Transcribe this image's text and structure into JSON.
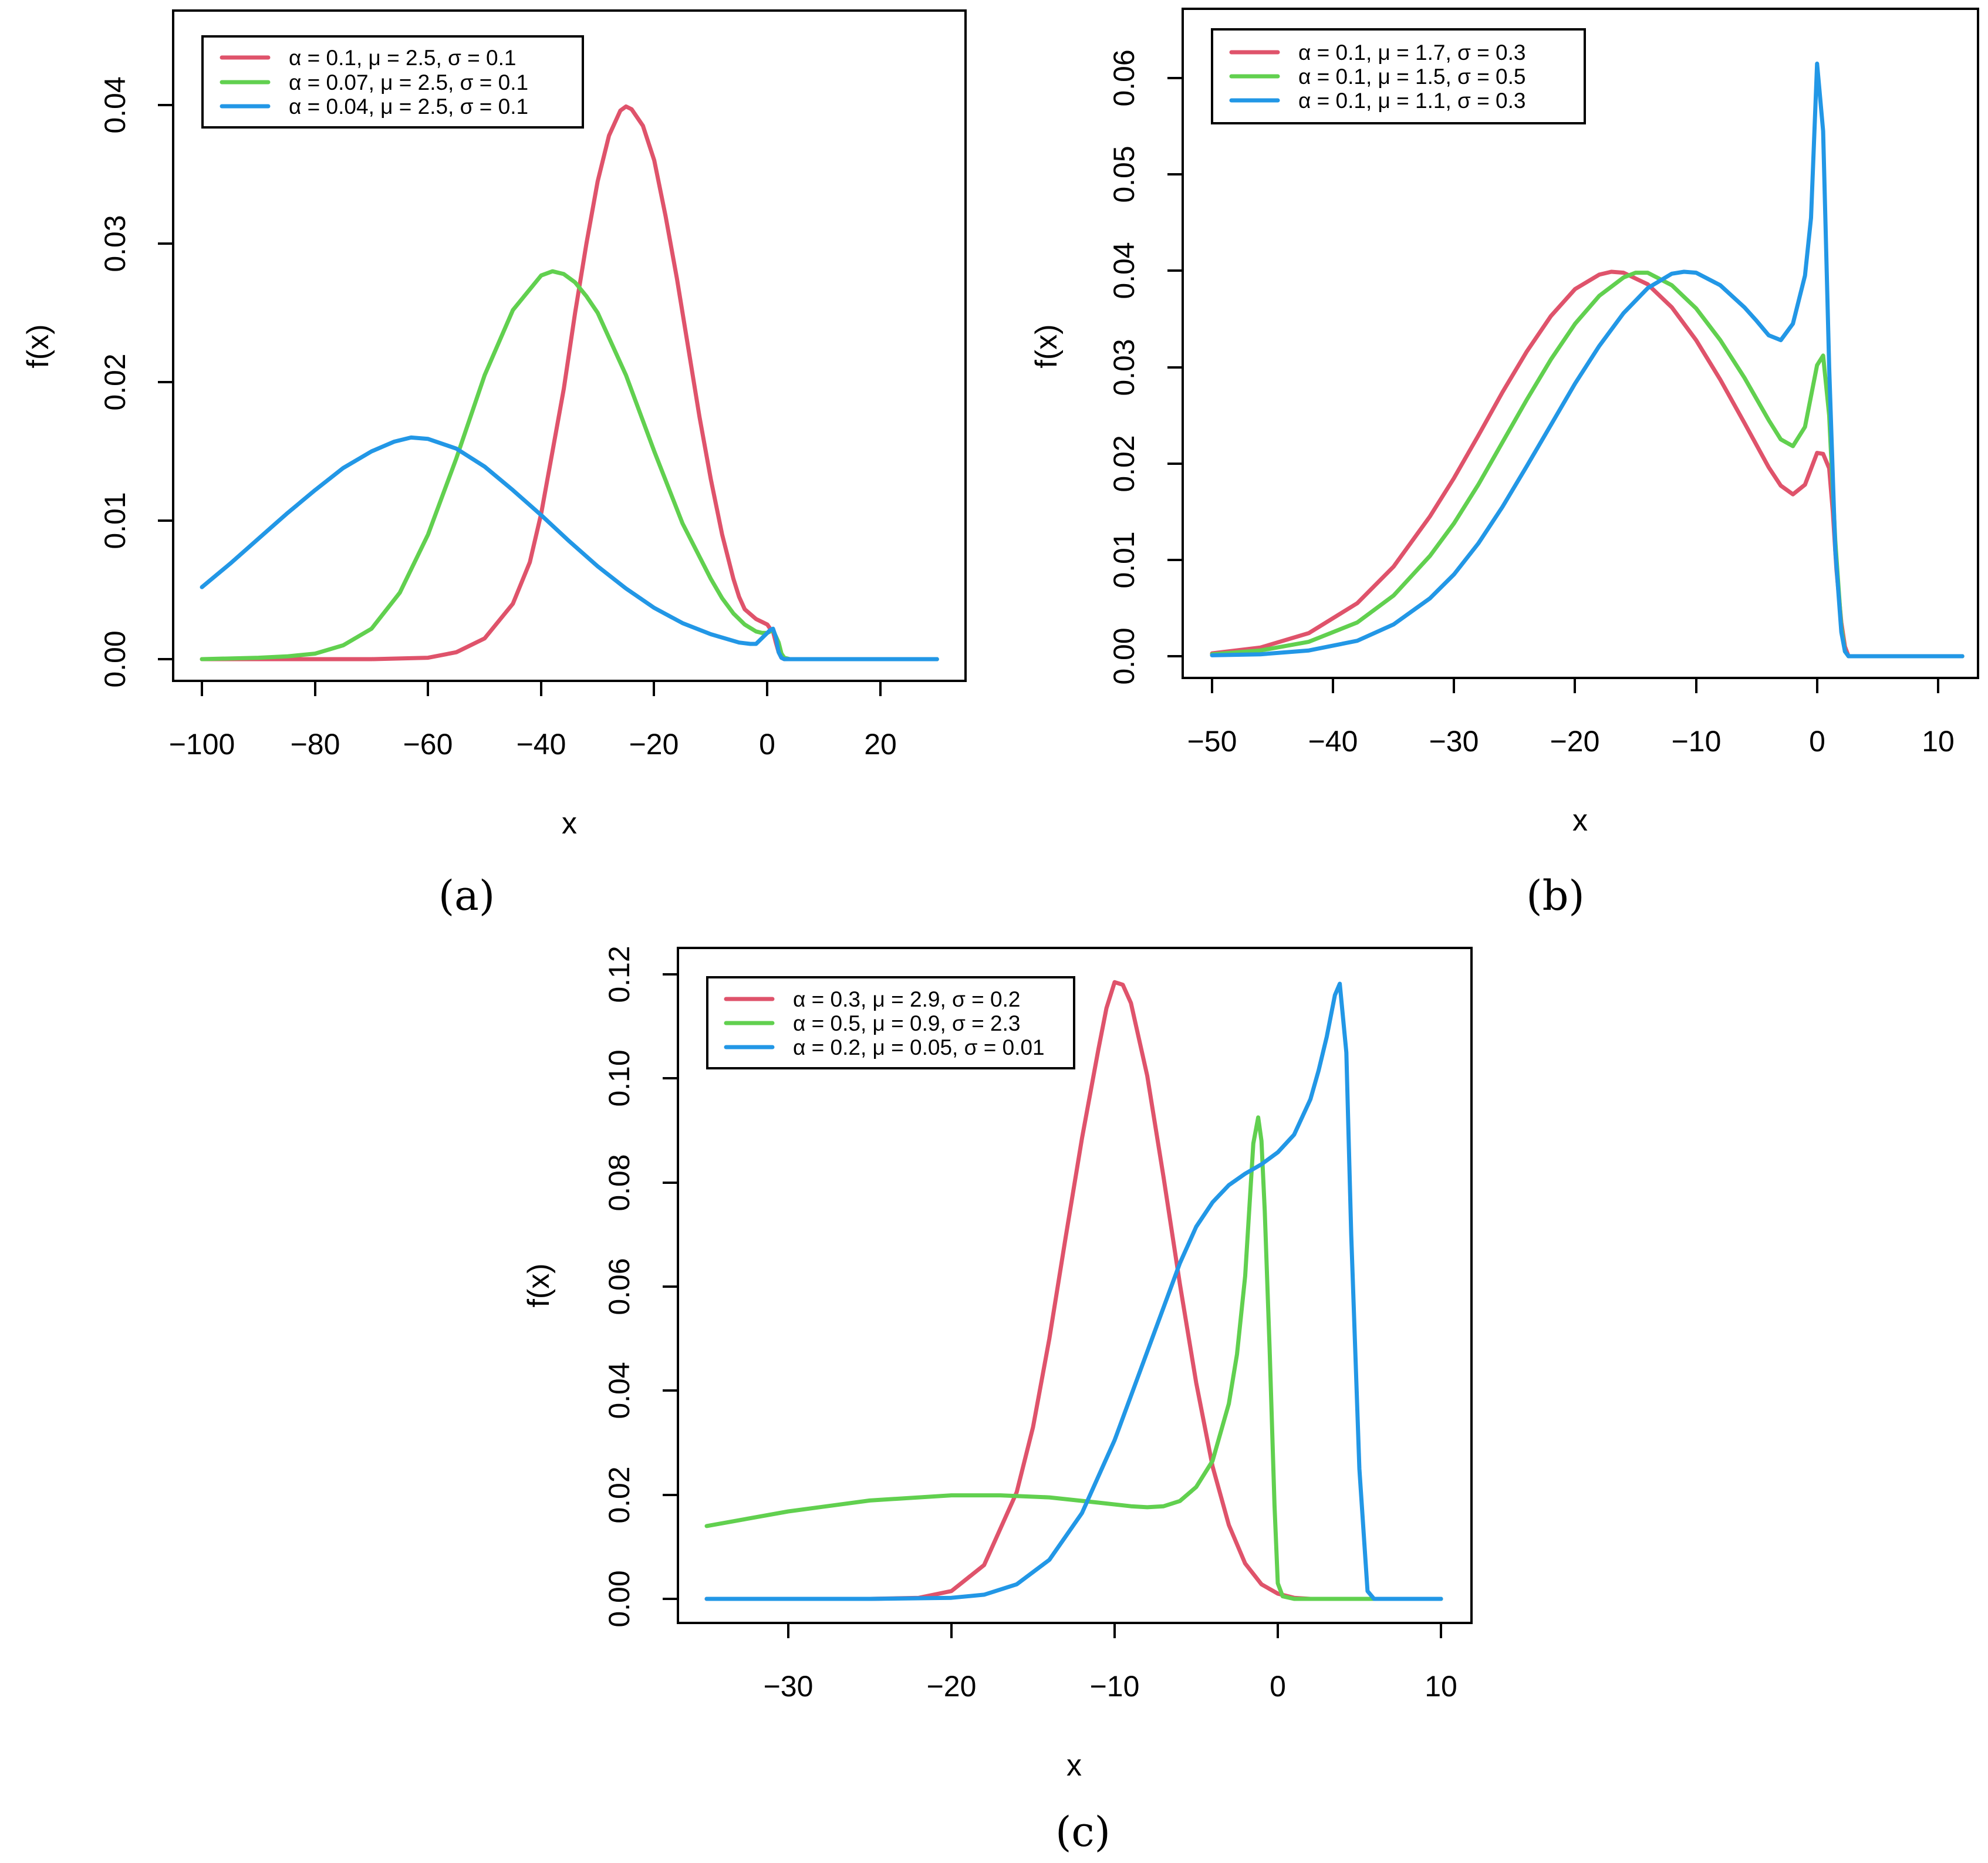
{
  "chart_data": [
    {
      "id": "a",
      "type": "line",
      "panel_label": "(a)",
      "title": "",
      "xlabel": "x",
      "ylabel": "f(x)",
      "xlim": [
        -100,
        30
      ],
      "ylim": [
        0,
        0.045
      ],
      "xticks": [
        -100,
        -80,
        -60,
        -40,
        -20,
        0,
        20
      ],
      "xtick_labels": [
        "−100",
        "−80",
        "−60",
        "−40",
        "−20",
        "0",
        "20"
      ],
      "yticks": [
        0,
        0.01,
        0.02,
        0.03,
        0.04
      ],
      "ytick_labels": [
        "0.00",
        "0.01",
        "0.02",
        "0.03",
        "0.04"
      ],
      "legend_position": "top-left",
      "series": [
        {
          "name": "α = 0.1, μ = 2.5, σ = 0.1",
          "color": "#DF536B",
          "x": [
            -100,
            -80,
            -70,
            -60,
            -55,
            -50,
            -45,
            -42,
            -40,
            -38,
            -36,
            -34,
            -32,
            -30,
            -28,
            -26,
            -25,
            -24,
            -22,
            -20,
            -18,
            -16,
            -14,
            -12,
            -10,
            -8,
            -6,
            -5,
            -4,
            -2,
            -1,
            0,
            0.5,
            1,
            1.5,
            2,
            2.5,
            3,
            4,
            10,
            20,
            30
          ],
          "y": [
            0,
            0,
            0,
            0.0001,
            0.0005,
            0.0015,
            0.004,
            0.007,
            0.0105,
            0.015,
            0.0195,
            0.025,
            0.03,
            0.0345,
            0.0378,
            0.0396,
            0.0399,
            0.0397,
            0.0385,
            0.036,
            0.032,
            0.0275,
            0.0225,
            0.0175,
            0.013,
            0.009,
            0.0058,
            0.0045,
            0.0036,
            0.0029,
            0.0027,
            0.0025,
            0.0022,
            0.002,
            0.0012,
            0.0005,
            0.0001,
            0,
            0,
            0,
            0,
            0
          ]
        },
        {
          "name": "α = 0.07, μ = 2.5, σ = 0.1",
          "color": "#61D04F",
          "x": [
            -100,
            -90,
            -85,
            -80,
            -75,
            -70,
            -65,
            -60,
            -55,
            -50,
            -45,
            -40,
            -38,
            -36,
            -34,
            -32,
            -30,
            -25,
            -20,
            -15,
            -10,
            -8,
            -6,
            -4,
            -2,
            -1,
            0,
            1,
            2,
            2.5,
            3,
            4,
            10,
            20,
            30
          ],
          "y": [
            0,
            0.0001,
            0.0002,
            0.0004,
            0.001,
            0.0022,
            0.0048,
            0.009,
            0.0145,
            0.0205,
            0.0252,
            0.0277,
            0.028,
            0.0278,
            0.0272,
            0.0262,
            0.025,
            0.0205,
            0.015,
            0.0098,
            0.0058,
            0.0044,
            0.0033,
            0.0025,
            0.002,
            0.0019,
            0.0019,
            0.0021,
            0.0012,
            0.0004,
            0.0001,
            0,
            0,
            0,
            0
          ]
        },
        {
          "name": "α = 0.04, μ = 2.5, σ = 0.1",
          "color": "#2297E6",
          "x": [
            -100,
            -95,
            -90,
            -85,
            -80,
            -75,
            -70,
            -66,
            -63,
            -60,
            -55,
            -50,
            -45,
            -40,
            -35,
            -30,
            -25,
            -20,
            -15,
            -10,
            -5,
            -3,
            -2,
            -1,
            0,
            0.5,
            1,
            1.5,
            2,
            2.5,
            3,
            4,
            10,
            20,
            30
          ],
          "y": [
            0.0052,
            0.0069,
            0.0087,
            0.0105,
            0.0122,
            0.0138,
            0.015,
            0.0157,
            0.016,
            0.0159,
            0.0152,
            0.0139,
            0.0122,
            0.0104,
            0.0085,
            0.0067,
            0.0051,
            0.0037,
            0.0026,
            0.0018,
            0.0012,
            0.0011,
            0.0011,
            0.0015,
            0.0019,
            0.0021,
            0.0022,
            0.0016,
            0.0005,
            0.0001,
            0,
            0,
            0,
            0,
            0
          ]
        }
      ]
    },
    {
      "id": "b",
      "type": "line",
      "panel_label": "(b)",
      "title": "",
      "xlabel": "x",
      "ylabel": "f(x)",
      "xlim": [
        -50,
        12
      ],
      "ylim": [
        0,
        0.065
      ],
      "xticks": [
        -50,
        -40,
        -30,
        -20,
        -10,
        0,
        10
      ],
      "xtick_labels": [
        "−50",
        "−40",
        "−30",
        "−20",
        "−10",
        "0",
        "10"
      ],
      "yticks": [
        0,
        0.01,
        0.02,
        0.03,
        0.04,
        0.05,
        0.06
      ],
      "ytick_labels": [
        "0.00",
        "0.01",
        "0.02",
        "0.03",
        "0.04",
        "0.05",
        "0.06"
      ],
      "legend_position": "top-left",
      "series": [
        {
          "name": "α = 0.1, μ = 1.7, σ = 0.3",
          "color": "#DF536B",
          "x": [
            -50,
            -46,
            -42,
            -38,
            -35,
            -32,
            -30,
            -28,
            -26,
            -24,
            -22,
            -20,
            -18,
            -17,
            -16,
            -14,
            -12,
            -10,
            -8,
            -6,
            -4,
            -3,
            -2,
            -1,
            0,
            0.5,
            1,
            1.3,
            1.6,
            2,
            2.3,
            2.6,
            5,
            12
          ],
          "y": [
            0.0003,
            0.0009,
            0.0024,
            0.0055,
            0.0093,
            0.0145,
            0.0185,
            0.0229,
            0.0274,
            0.0316,
            0.0353,
            0.0381,
            0.0396,
            0.0399,
            0.0398,
            0.0386,
            0.0362,
            0.0328,
            0.0287,
            0.0242,
            0.0196,
            0.0177,
            0.0168,
            0.0178,
            0.0211,
            0.021,
            0.0195,
            0.015,
            0.009,
            0.0035,
            0.001,
            0,
            0,
            0
          ]
        },
        {
          "name": "α = 0.1, μ = 1.5, σ = 0.5",
          "color": "#61D04F",
          "x": [
            -50,
            -46,
            -42,
            -38,
            -35,
            -32,
            -30,
            -28,
            -26,
            -24,
            -22,
            -20,
            -18,
            -16,
            -15,
            -14,
            -12,
            -10,
            -8,
            -6,
            -4,
            -3,
            -2,
            -1,
            0,
            0.5,
            1,
            1.5,
            2,
            2.3,
            2.6,
            5,
            12
          ],
          "y": [
            0.0002,
            0.0006,
            0.0015,
            0.0035,
            0.0063,
            0.0104,
            0.0138,
            0.0178,
            0.0222,
            0.0266,
            0.0308,
            0.0345,
            0.0374,
            0.0393,
            0.0398,
            0.0398,
            0.0385,
            0.0361,
            0.0328,
            0.0289,
            0.0245,
            0.0225,
            0.0218,
            0.0238,
            0.0302,
            0.0312,
            0.025,
            0.012,
            0.003,
            0.0005,
            0,
            0,
            0
          ]
        },
        {
          "name": "α = 0.1, μ = 1.1, σ = 0.3",
          "color": "#2297E6",
          "x": [
            -50,
            -46,
            -42,
            -38,
            -35,
            -32,
            -30,
            -28,
            -26,
            -24,
            -22,
            -20,
            -18,
            -16,
            -14,
            -12,
            -11,
            -10,
            -8,
            -6,
            -5,
            -4,
            -3,
            -2,
            -1,
            -0.5,
            0,
            0.5,
            1,
            1.5,
            2,
            2.3,
            2.6,
            5,
            12
          ],
          "y": [
            0.0001,
            0.0002,
            0.0006,
            0.0016,
            0.0033,
            0.006,
            0.0085,
            0.0117,
            0.0155,
            0.0197,
            0.024,
            0.0283,
            0.0322,
            0.0356,
            0.0382,
            0.0397,
            0.0399,
            0.0398,
            0.0385,
            0.0362,
            0.0348,
            0.0333,
            0.0328,
            0.0345,
            0.0395,
            0.0455,
            0.0615,
            0.0545,
            0.03,
            0.011,
            0.0025,
            0.0005,
            0,
            0,
            0
          ]
        }
      ]
    },
    {
      "id": "c",
      "type": "line",
      "panel_label": "(c)",
      "title": "",
      "xlabel": "x",
      "ylabel": "f(x)",
      "xlim": [
        -35,
        10
      ],
      "ylim": [
        0,
        0.12
      ],
      "xticks": [
        -30,
        -20,
        -10,
        0,
        10
      ],
      "xtick_labels": [
        "−30",
        "−20",
        "−10",
        "0",
        "10"
      ],
      "yticks": [
        0,
        0.02,
        0.04,
        0.06,
        0.08,
        0.1,
        0.12
      ],
      "ytick_labels": [
        "0.00",
        "0.02",
        "0.04",
        "0.06",
        "0.08",
        "0.10",
        "0.12"
      ],
      "legend_position": "top-left",
      "series": [
        {
          "name": "α = 0.3, μ = 2.9, σ = 0.2",
          "color": "#DF536B",
          "x": [
            -35,
            -25,
            -22,
            -20,
            -18,
            -16,
            -15,
            -14,
            -13,
            -12,
            -11,
            -10.5,
            -10,
            -9.5,
            -9,
            -8,
            -7,
            -6,
            -5,
            -4,
            -3,
            -2,
            -1,
            0,
            1,
            2,
            5,
            10
          ],
          "y": [
            0,
            0,
            0.0002,
            0.0015,
            0.0065,
            0.0205,
            0.033,
            0.05,
            0.0695,
            0.0885,
            0.1055,
            0.1135,
            0.1185,
            0.118,
            0.1145,
            0.1005,
            0.081,
            0.0605,
            0.0415,
            0.0255,
            0.0142,
            0.0068,
            0.0028,
            0.001,
            0.0002,
            0,
            0,
            0
          ]
        },
        {
          "name": "α = 0.5, μ = 0.9, σ = 2.3",
          "color": "#61D04F",
          "x": [
            -35,
            -30,
            -25,
            -20,
            -17,
            -14,
            -11,
            -9,
            -8,
            -7,
            -6,
            -5,
            -4,
            -3,
            -2.5,
            -2,
            -1.5,
            -1.2,
            -1,
            -0.8,
            -0.5,
            -0.2,
            0,
            0.3,
            1,
            2,
            5,
            10
          ],
          "y": [
            0.014,
            0.0168,
            0.0189,
            0.0199,
            0.0199,
            0.0195,
            0.0185,
            0.0178,
            0.0176,
            0.0178,
            0.0188,
            0.0215,
            0.0265,
            0.0375,
            0.047,
            0.062,
            0.0875,
            0.0925,
            0.088,
            0.0745,
            0.048,
            0.018,
            0.003,
            0.0005,
            0,
            0,
            0,
            0
          ]
        },
        {
          "name": "α = 0.2, μ = 0.05, σ = 0.01",
          "color": "#2297E6",
          "x": [
            -35,
            -25,
            -20,
            -18,
            -16,
            -14,
            -12,
            -10,
            -8,
            -6,
            -5,
            -4,
            -3,
            -2,
            -1,
            0,
            1,
            2,
            2.5,
            3,
            3.5,
            3.8,
            4.2,
            4.5,
            5,
            5.5,
            5.9,
            6.5,
            10
          ],
          "y": [
            0,
            0,
            0.0002,
            0.0008,
            0.0028,
            0.0075,
            0.0165,
            0.0305,
            0.0475,
            0.0645,
            0.0715,
            0.0762,
            0.0795,
            0.0817,
            0.0835,
            0.0858,
            0.0892,
            0.096,
            0.1015,
            0.108,
            0.116,
            0.1182,
            0.105,
            0.07,
            0.025,
            0.0015,
            0,
            0,
            0
          ]
        }
      ]
    }
  ]
}
